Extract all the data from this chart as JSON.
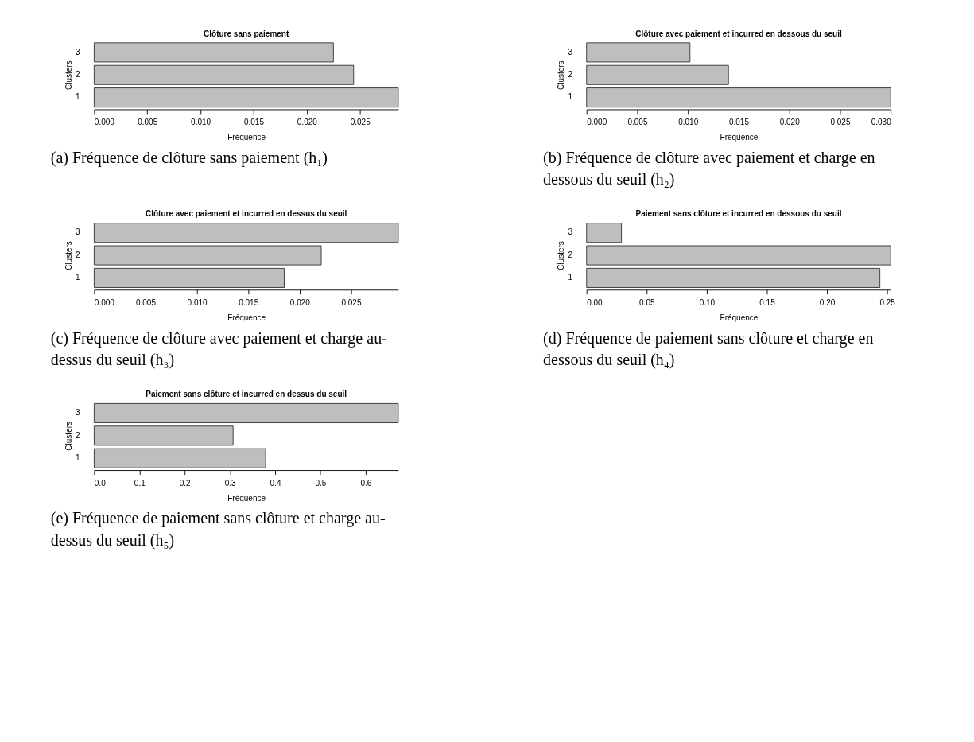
{
  "chart_data": [
    {
      "type": "bar",
      "orientation": "horizontal",
      "title": "Clôture sans paiement",
      "xlabel": "Fréquence",
      "ylabel": "Clusters",
      "categories": [
        "3",
        "2",
        "1"
      ],
      "values": [
        0.0225,
        0.0244,
        0.0286
      ],
      "color": "#bebebe",
      "xlim": [
        0,
        0.0286
      ],
      "xticks": [
        {
          "value": 0,
          "label": "0.000"
        },
        {
          "value": 0.005,
          "label": "0.005"
        },
        {
          "value": 0.01,
          "label": "0.010"
        },
        {
          "value": 0.015,
          "label": "0.015"
        },
        {
          "value": 0.02,
          "label": "0.020"
        },
        {
          "value": 0.025,
          "label": "0.025"
        }
      ],
      "annotations": [
        "(a) Fréquence de clôture sans paiement (h₁)"
      ]
    },
    {
      "type": "bar",
      "orientation": "horizontal",
      "title": "Clôture avec paiement et incurred en dessous du seuil",
      "xlabel": "Fréquence",
      "ylabel": "Clusters",
      "categories": [
        "3",
        "2",
        "1"
      ],
      "values": [
        0.0102,
        0.014,
        0.03
      ],
      "color": "#bebebe",
      "xlim": [
        0,
        0.03
      ],
      "xticks": [
        {
          "value": 0,
          "label": "0.000"
        },
        {
          "value": 0.005,
          "label": "0.005"
        },
        {
          "value": 0.01,
          "label": "0.010"
        },
        {
          "value": 0.015,
          "label": "0.015"
        },
        {
          "value": 0.02,
          "label": "0.020"
        },
        {
          "value": 0.025,
          "label": "0.025"
        },
        {
          "value": 0.03,
          "label": "0.030"
        }
      ],
      "annotations": [
        "(b) Fréquence de clôture avec paiement et charge en dessous du seuil (h₂)"
      ]
    },
    {
      "type": "bar",
      "orientation": "horizontal",
      "title": "Clôture avec paiement et incurred en dessus du seuil",
      "xlabel": "Fréquence",
      "ylabel": "Clusters",
      "categories": [
        "3",
        "2",
        "1"
      ],
      "values": [
        0.0296,
        0.0221,
        0.0185
      ],
      "color": "#bebebe",
      "xlim": [
        0,
        0.0296
      ],
      "xticks": [
        {
          "value": 0,
          "label": "0.000"
        },
        {
          "value": 0.005,
          "label": "0.005"
        },
        {
          "value": 0.01,
          "label": "0.010"
        },
        {
          "value": 0.015,
          "label": "0.015"
        },
        {
          "value": 0.02,
          "label": "0.020"
        },
        {
          "value": 0.025,
          "label": "0.025"
        }
      ],
      "annotations": [
        "(c) Fréquence de clôture avec paiement et charge au-dessus du seuil (h₃)"
      ]
    },
    {
      "type": "bar",
      "orientation": "horizontal",
      "title": "Paiement sans clôture et incurred en dessous du seuil",
      "xlabel": "Fréquence",
      "ylabel": "Clusters",
      "categories": [
        "3",
        "2",
        "1"
      ],
      "values": [
        0.029,
        0.253,
        0.244
      ],
      "color": "#bebebe",
      "xlim": [
        0,
        0.253
      ],
      "xticks": [
        {
          "value": 0,
          "label": "0.00"
        },
        {
          "value": 0.05,
          "label": "0.05"
        },
        {
          "value": 0.1,
          "label": "0.10"
        },
        {
          "value": 0.15,
          "label": "0.15"
        },
        {
          "value": 0.2,
          "label": "0.20"
        },
        {
          "value": 0.25,
          "label": "0.25"
        }
      ],
      "annotations": [
        "(d) Fréquence de paiement sans clôture et charge en dessous du seuil (h₄)"
      ]
    },
    {
      "type": "bar",
      "orientation": "horizontal",
      "title": "Paiement sans clôture et incurred en dessus du seuil",
      "xlabel": "Fréquence",
      "ylabel": "Clusters",
      "categories": [
        "3",
        "2",
        "1"
      ],
      "values": [
        0.672,
        0.307,
        0.379
      ],
      "color": "#bebebe",
      "xlim": [
        0,
        0.672
      ],
      "xticks": [
        {
          "value": 0,
          "label": "0.0"
        },
        {
          "value": 0.1,
          "label": "0.1"
        },
        {
          "value": 0.2,
          "label": "0.2"
        },
        {
          "value": 0.3,
          "label": "0.3"
        },
        {
          "value": 0.4,
          "label": "0.4"
        },
        {
          "value": 0.5,
          "label": "0.5"
        },
        {
          "value": 0.6,
          "label": "0.6"
        }
      ],
      "annotations": [
        "(e) Fréquence de paiement sans clôture et charge au-dessus du seuil (h₅)"
      ]
    }
  ]
}
